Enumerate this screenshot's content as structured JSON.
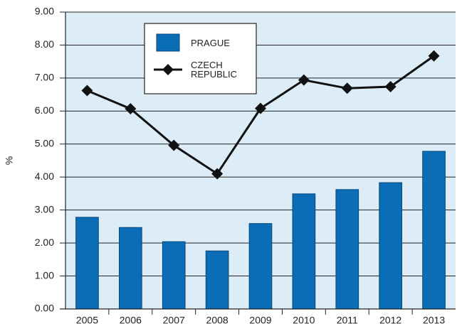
{
  "chart_data": {
    "type": "bar_line",
    "y_label": "%",
    "categories": [
      "2005",
      "2006",
      "2007",
      "2008",
      "2009",
      "2010",
      "2011",
      "2012",
      "2013"
    ],
    "series": [
      {
        "name": "PRAGUE",
        "type": "bar",
        "color": "#0b6db5",
        "values": [
          2.78,
          2.47,
          2.04,
          1.76,
          2.59,
          3.49,
          3.62,
          3.83,
          4.78
        ]
      },
      {
        "name": "CZECH REPUBLIC",
        "type": "line",
        "color": "#111111",
        "values": [
          6.62,
          6.07,
          4.96,
          4.1,
          6.08,
          6.94,
          6.69,
          6.74,
          7.67
        ]
      }
    ],
    "ylim": [
      0,
      9
    ],
    "yticks": [
      {
        "value": 0,
        "label": "0.00"
      },
      {
        "value": 1,
        "label": "1.00"
      },
      {
        "value": 2,
        "label": "2.00"
      },
      {
        "value": 3,
        "label": "3.00"
      },
      {
        "value": 4,
        "label": "4.00"
      },
      {
        "value": 5,
        "label": "5.00"
      },
      {
        "value": 6,
        "label": "6.00"
      },
      {
        "value": 7,
        "label": "7.00"
      },
      {
        "value": 8,
        "label": "8.00"
      },
      {
        "value": 9,
        "label": "9.00"
      }
    ],
    "grid": true,
    "legend": "upper left"
  }
}
